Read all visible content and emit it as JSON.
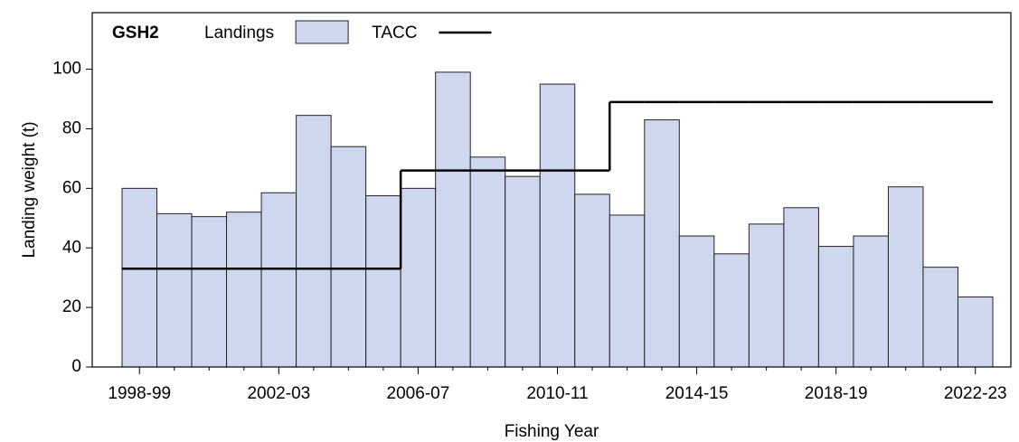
{
  "chart_data": {
    "type": "bar",
    "title": "GSH2",
    "x_label": "Fishing Year",
    "y_label": "Landing weight (t)",
    "categories": [
      "1998-99",
      null,
      null,
      null,
      "2002-03",
      null,
      null,
      null,
      "2006-07",
      null,
      null,
      null,
      "2010-11",
      null,
      null,
      null,
      "2014-15",
      null,
      null,
      null,
      "2018-19",
      null,
      null,
      null,
      "2022-23"
    ],
    "series": [
      {
        "name": "Landings",
        "type": "bar",
        "color": "#cfd7ef",
        "values": [
          60,
          51.5,
          50.5,
          52,
          58.5,
          84.5,
          74,
          57.5,
          60,
          99,
          70.5,
          64,
          95,
          58,
          51,
          83,
          44,
          38,
          48,
          53.5,
          40.5,
          44,
          60.5,
          33.5,
          23.5
        ]
      },
      {
        "name": "TACC",
        "type": "step",
        "color": "#000000",
        "values": [
          33,
          33,
          33,
          33,
          33,
          33,
          33,
          33,
          66,
          66,
          66,
          66,
          66,
          66,
          89,
          89,
          89,
          89,
          89,
          89,
          89,
          89,
          89,
          89,
          89
        ]
      }
    ],
    "ylim": [
      0,
      119
    ],
    "yticks": [
      0,
      20,
      40,
      60,
      80,
      100
    ],
    "grid": false,
    "legend": "top"
  }
}
